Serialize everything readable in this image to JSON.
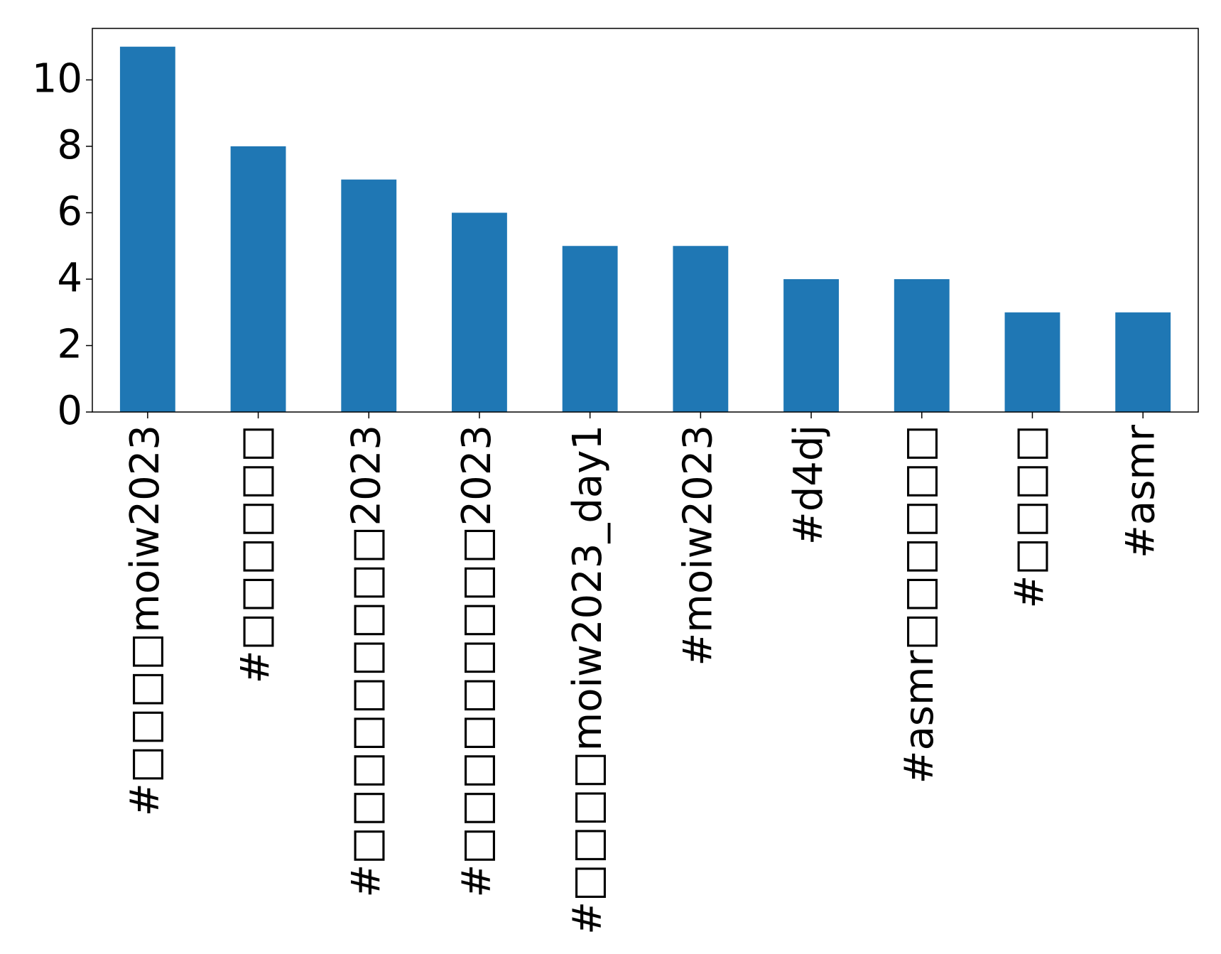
{
  "chart_data": {
    "type": "bar",
    "title": "",
    "xlabel": "",
    "ylabel": "",
    "categories": [
      "#□□□□moiw2023",
      "#□□□□□□",
      "#□□□□□□□□□2023",
      "#□□□□□□□□□2023",
      "#□□□□moiw2023_day1",
      "#moiw2023",
      "#d4dj",
      "#asmr□□□□□□",
      "#□□□□",
      "#asmr"
    ],
    "values": [
      11,
      8,
      7,
      6,
      5,
      5,
      4,
      4,
      3,
      3
    ],
    "ylim": [
      0,
      11.55
    ],
    "yticks": [
      0,
      2,
      4,
      6,
      8,
      10
    ],
    "grid": false,
    "legend": "none",
    "bar_color": "#1f77b4"
  }
}
